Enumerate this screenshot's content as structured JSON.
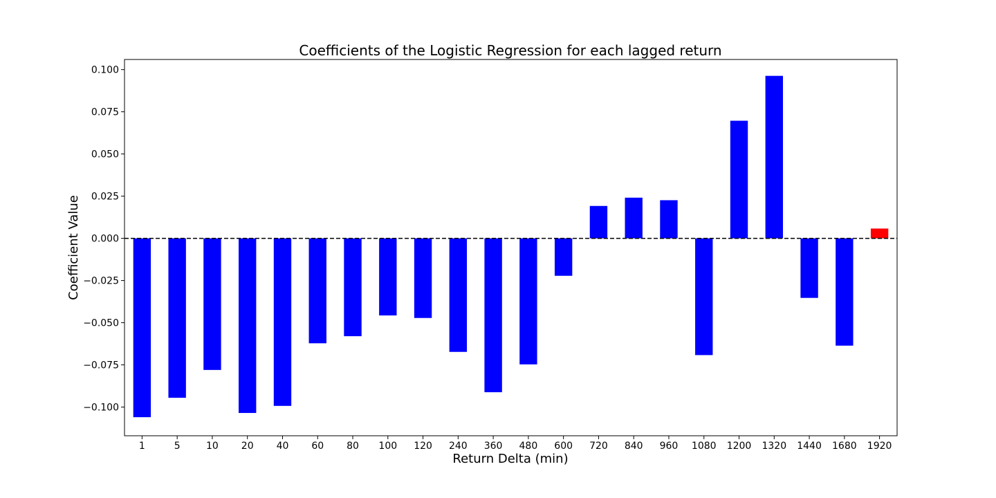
{
  "chart_data": {
    "type": "bar",
    "title": "Coefficients of the Logistic Regression for each lagged return",
    "xlabel": "Return Delta (min)",
    "ylabel": "Coefficient Value",
    "categories": [
      "1",
      "5",
      "10",
      "20",
      "40",
      "60",
      "80",
      "100",
      "120",
      "240",
      "360",
      "480",
      "600",
      "720",
      "840",
      "960",
      "1080",
      "1200",
      "1320",
      "1440",
      "1680",
      "1920"
    ],
    "values": [
      -0.106,
      -0.0945,
      -0.078,
      -0.1035,
      -0.0993,
      -0.0622,
      -0.058,
      -0.0457,
      -0.0472,
      -0.0673,
      -0.0912,
      -0.0747,
      -0.0222,
      0.0192,
      0.0241,
      0.0226,
      -0.0692,
      0.0697,
      0.0963,
      -0.0353,
      -0.0636,
      0.0058
    ],
    "colors": [
      "#0000ff",
      "#0000ff",
      "#0000ff",
      "#0000ff",
      "#0000ff",
      "#0000ff",
      "#0000ff",
      "#0000ff",
      "#0000ff",
      "#0000ff",
      "#0000ff",
      "#0000ff",
      "#0000ff",
      "#0000ff",
      "#0000ff",
      "#0000ff",
      "#0000ff",
      "#0000ff",
      "#0000ff",
      "#0000ff",
      "#0000ff",
      "#ff0000"
    ],
    "ylim": [
      -0.117,
      0.106
    ],
    "yticks": [
      -0.1,
      -0.075,
      -0.05,
      -0.025,
      0.0,
      0.025,
      0.05,
      0.075,
      0.1
    ],
    "ytick_labels": [
      "−0.100",
      "−0.075",
      "−0.050",
      "−0.025",
      "0.000",
      "0.025",
      "0.050",
      "0.075",
      "0.100"
    ],
    "reference_line": {
      "y": 0.0,
      "style": "dashed",
      "color": "#000000"
    },
    "grid": false,
    "legend": "none"
  }
}
